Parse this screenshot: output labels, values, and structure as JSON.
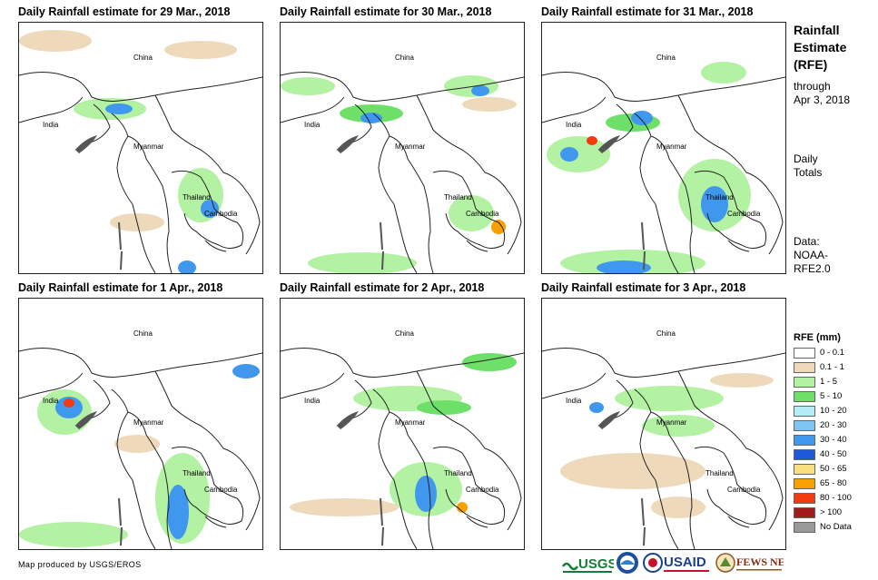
{
  "panels": [
    {
      "title": "Daily Rainfall estimate for 29 Mar., 2018"
    },
    {
      "title": "Daily Rainfall estimate for 30 Mar., 2018"
    },
    {
      "title": "Daily Rainfall estimate for 31 Mar., 2018"
    },
    {
      "title": "Daily Rainfall estimate for 1 Apr., 2018"
    },
    {
      "title": "Daily Rainfall estimate for 2 Apr., 2018"
    },
    {
      "title": "Daily Rainfall estimate for 3 Apr., 2018"
    }
  ],
  "places": {
    "china": "China",
    "india": "India",
    "myanmar": "Myanmar",
    "thailand": "Thailand",
    "cambodia": "Cambodia"
  },
  "info": {
    "title_line1": "Rainfall",
    "title_line2": "Estimate",
    "title_line3": "(RFE)",
    "through": "through",
    "date": "Apr 3, 2018",
    "daily": "Daily",
    "totals": "Totals",
    "data_label": "Data:",
    "data_source_1": "NOAA-",
    "data_source_2": "RFE2.0"
  },
  "legend": {
    "title": "RFE (mm)",
    "items": [
      {
        "label": "0 - 0.1",
        "color": "#ffffff"
      },
      {
        "label": "0.1 - 1",
        "color": "#eed9bb"
      },
      {
        "label": "1 - 5",
        "color": "#b2f2a2"
      },
      {
        "label": "5 - 10",
        "color": "#6ee06a"
      },
      {
        "label": "10 - 20",
        "color": "#b4ecf8"
      },
      {
        "label": "20 - 30",
        "color": "#7ec4f2"
      },
      {
        "label": "30 - 40",
        "color": "#3f97ee"
      },
      {
        "label": "40 - 50",
        "color": "#1e5ad8"
      },
      {
        "label": "50 - 65",
        "color": "#f8e07e"
      },
      {
        "label": "65 - 80",
        "color": "#f7a000"
      },
      {
        "label": "80 - 100",
        "color": "#f03c10"
      },
      {
        "label": "> 100",
        "color": "#a21a1a"
      },
      {
        "label": "No Data",
        "color": "#999999"
      }
    ]
  },
  "credit": "Map produced by USGS/EROS",
  "logos": {
    "usgs": "USGS",
    "usaid": "USAID",
    "fewsnet": "FEWS NET"
  },
  "colors": {
    "border": "#222222",
    "coast_nodata": "#555555"
  }
}
